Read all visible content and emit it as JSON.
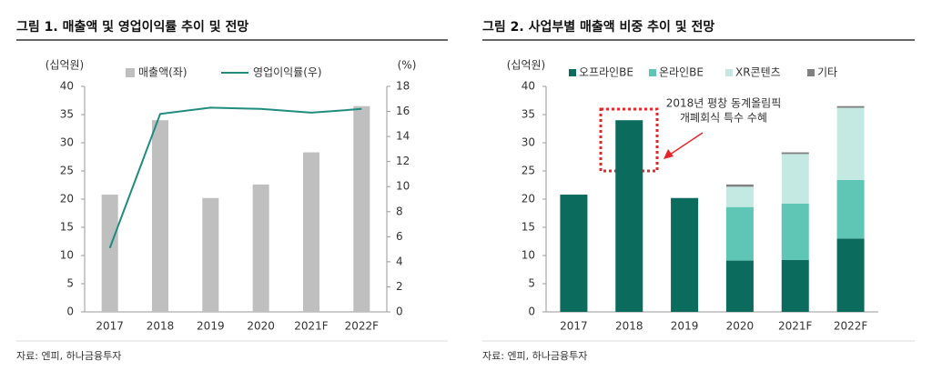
{
  "chart_data": [
    {
      "type": "bar-line",
      "title": "그림 1. 매출액 및 영업이익률 추이 및 전망",
      "y_label": "(십억원)",
      "y2_label": "(%)",
      "categories": [
        "2017",
        "2018",
        "2019",
        "2020",
        "2021F",
        "2022F"
      ],
      "series": [
        {
          "name": "매출액(좌)",
          "color": "#bfbfbf",
          "values": [
            20.8,
            34,
            20.2,
            22.6,
            28.3,
            36.5
          ]
        },
        {
          "name": "영업이익률(우)",
          "color": "#1f8c7e",
          "axis": "y2",
          "values": [
            5.1,
            15.8,
            16.3,
            16.2,
            15.9,
            16.2
          ]
        }
      ],
      "ylim": [
        0,
        40
      ],
      "yticks": [
        0,
        5,
        10,
        15,
        20,
        25,
        30,
        35,
        40
      ],
      "y2lim": [
        0,
        18
      ],
      "y2ticks": [
        0,
        2,
        4,
        6,
        8,
        10,
        12,
        14,
        16,
        18
      ],
      "source": "자료: 엔피, 하나금융투자"
    },
    {
      "type": "stacked-bar",
      "title": "그림 2. 사업부별 매출액 비중 추이 및 전망",
      "y_label": "(십억원)",
      "categories": [
        "2017",
        "2018",
        "2019",
        "2020",
        "2021F",
        "2022F"
      ],
      "series": [
        {
          "name": "오프라인BE",
          "color": "#0b6b5c",
          "values": [
            20.8,
            34,
            20.2,
            9.1,
            9.2,
            13.0
          ]
        },
        {
          "name": "온라인BE",
          "color": "#5fc5b5",
          "values": [
            0,
            0,
            0,
            9.5,
            10.0,
            10.4
          ]
        },
        {
          "name": "XR콘텐츠",
          "color": "#c3e9e2",
          "values": [
            0,
            0,
            0,
            3.6,
            8.8,
            12.8
          ]
        },
        {
          "name": "기타",
          "color": "#808080",
          "values": [
            0,
            0,
            0,
            0.4,
            0.3,
            0.3
          ]
        }
      ],
      "ylim": [
        0,
        40
      ],
      "yticks": [
        0,
        5,
        10,
        15,
        20,
        25,
        30,
        35,
        40
      ],
      "annotation": [
        "2018년 평창 동계올림픽",
        "개폐회식 특수 수혜"
      ],
      "source": "자료: 엔피, 하나금융투자"
    }
  ]
}
